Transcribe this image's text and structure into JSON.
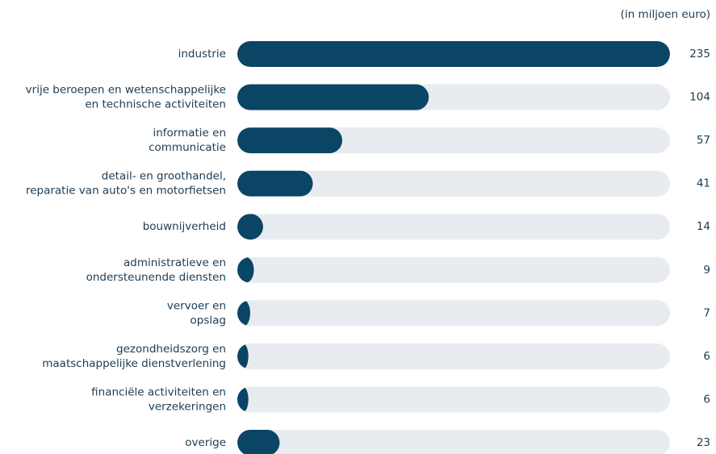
{
  "chart_data": {
    "type": "bar",
    "orientation": "horizontal",
    "unit_label": "(in miljoen euro)",
    "categories": [
      [
        "industrie"
      ],
      [
        "vrije beroepen en wetenschappelijke",
        "en technische activiteiten"
      ],
      [
        "informatie en",
        "communicatie"
      ],
      [
        "detail- en groothandel,",
        "reparatie van auto's en motorfietsen"
      ],
      [
        "bouwnijverheid"
      ],
      [
        "administratieve en",
        "ondersteunende diensten"
      ],
      [
        "vervoer en",
        "opslag"
      ],
      [
        "gezondheidszorg en",
        "maatschappelijke dienstverlening"
      ],
      [
        "financiële activiteiten en",
        "verzekeringen"
      ],
      [
        "overige"
      ]
    ],
    "values": [
      235,
      104,
      57,
      41,
      14,
      9,
      7,
      6,
      6,
      23
    ],
    "color": "#0b4565",
    "track_color": "#e8ecf0",
    "xlim": [
      0,
      235
    ]
  }
}
